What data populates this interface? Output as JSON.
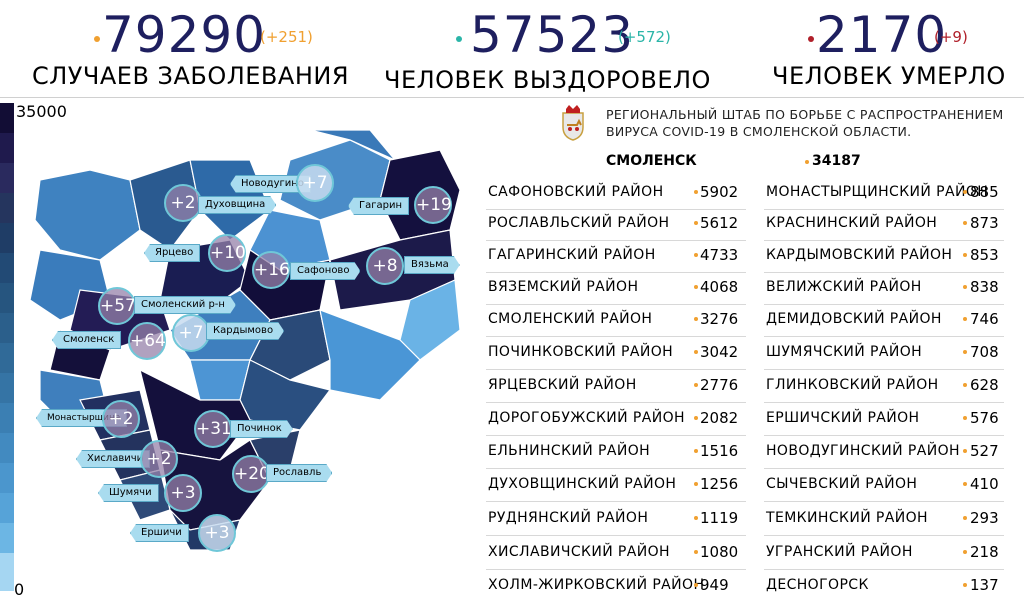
{
  "stats": {
    "cases": {
      "value": "79290",
      "delta": "(+251)",
      "label": "СЛУЧАЕВ ЗАБОЛЕВАНИЯ",
      "dot_color": "#f0a030",
      "delta_color": "#f0a030"
    },
    "recovered": {
      "value": "57523",
      "delta": "(+572)",
      "label": "ЧЕЛОВЕК ВЫЗДОРОВЕЛО",
      "dot_color": "#2bb5a8",
      "delta_color": "#2bb5a8"
    },
    "deaths": {
      "value": "2170",
      "delta": "(+9)",
      "label": "ЧЕЛОВЕК УМЕРЛО",
      "dot_color": "#b0202a",
      "delta_color": "#b0202a"
    }
  },
  "scale": {
    "max": "35000",
    "min": "0"
  },
  "map_labels": [
    {
      "name": "Новодугино",
      "delta": "+7"
    },
    {
      "name": "Духовщина",
      "delta": "+2"
    },
    {
      "name": "Гагарин",
      "delta": "+19"
    },
    {
      "name": "Ярцево",
      "delta": "+10"
    },
    {
      "name": "Сафоново",
      "delta": "+16"
    },
    {
      "name": "Вязьма",
      "delta": "+8"
    },
    {
      "name": "Смоленский р-н",
      "delta": "+57"
    },
    {
      "name": "Смоленск",
      "delta": "+64"
    },
    {
      "name": "Кардымово",
      "delta": "+7"
    },
    {
      "name": "Монастырщина",
      "delta": "+2"
    },
    {
      "name": "Починок",
      "delta": "+31"
    },
    {
      "name": "Хиславичи",
      "delta": "+2"
    },
    {
      "name": "Рославль",
      "delta": "+20"
    },
    {
      "name": "Шумячи",
      "delta": "+3"
    },
    {
      "name": "Ершичи",
      "delta": "+3"
    }
  ],
  "header": {
    "hq_line1": "РЕГИОНАЛЬНЫЙ ШТАБ ПО БОРЬБЕ С РАСПРОСТРАНЕНИЕМ",
    "hq_line2": "ВИРУСА  COVID-19 В СМОЛЕНСКОЙ ОБЛАСТИ.",
    "city": "СМОЛЕНСК",
    "city_value": "34187"
  },
  "left_table": [
    {
      "name": "САФОНОВСКИЙ РАЙОН",
      "value": "5902"
    },
    {
      "name": "РОСЛАВЛЬСКИЙ РАЙОН",
      "value": "5612"
    },
    {
      "name": "ГАГАРИНСКИЙ РАЙОН",
      "value": "4733"
    },
    {
      "name": "ВЯЗЕМСКИЙ РАЙОН",
      "value": "4068"
    },
    {
      "name": "СМОЛЕНСКИЙ РАЙОН",
      "value": "3276"
    },
    {
      "name": "ПОЧИНКОВСКИЙ РАЙОН",
      "value": "3042"
    },
    {
      "name": "ЯРЦЕВСКИЙ РАЙОН",
      "value": "2776"
    },
    {
      "name": "ДОРОГОБУЖСКИЙ РАЙОН",
      "value": "2082"
    },
    {
      "name": "ЕЛЬНИНСКИЙ РАЙОН",
      "value": "1516"
    },
    {
      "name": "ДУХОВЩИНСКИЙ РАЙОН",
      "value": "1256"
    },
    {
      "name": "РУДНЯНСКИЙ РАЙОН",
      "value": "1119"
    },
    {
      "name": "ХИСЛАВИЧСКИЙ РАЙОН",
      "value": "1080"
    },
    {
      "name": "ХОЛМ-ЖИРКОВСКИЙ РАЙОН",
      "value": "949"
    }
  ],
  "right_table": [
    {
      "name": "МОНАСТЫРЩИНСКИЙ РАЙОН",
      "value": "885"
    },
    {
      "name": "КРАСНИНСКИЙ РАЙОН",
      "value": "873"
    },
    {
      "name": "КАРДЫМОВСКИЙ РАЙОН",
      "value": "853"
    },
    {
      "name": "ВЕЛИЖСКИЙ РАЙОН",
      "value": "838"
    },
    {
      "name": "ДЕМИДОВСКИЙ РАЙОН",
      "value": "746"
    },
    {
      "name": "ШУМЯЧСКИЙ РАЙОН",
      "value": "708"
    },
    {
      "name": "ГЛИНКОВСКИЙ РАЙОН",
      "value": "628"
    },
    {
      "name": "ЕРШИЧСКИЙ РАЙОН",
      "value": "576"
    },
    {
      "name": "НОВОДУГИНСКИЙ РАЙОН",
      "value": "527"
    },
    {
      "name": "СЫЧЕВСКИЙ РАЙОН",
      "value": "410"
    },
    {
      "name": "ТЕМКИНСКИЙ РАЙОН",
      "value": "293"
    },
    {
      "name": "УГРАНСКИЙ РАЙОН",
      "value": "218"
    },
    {
      "name": "ДЕСНОГОРСК",
      "value": "137"
    }
  ]
}
